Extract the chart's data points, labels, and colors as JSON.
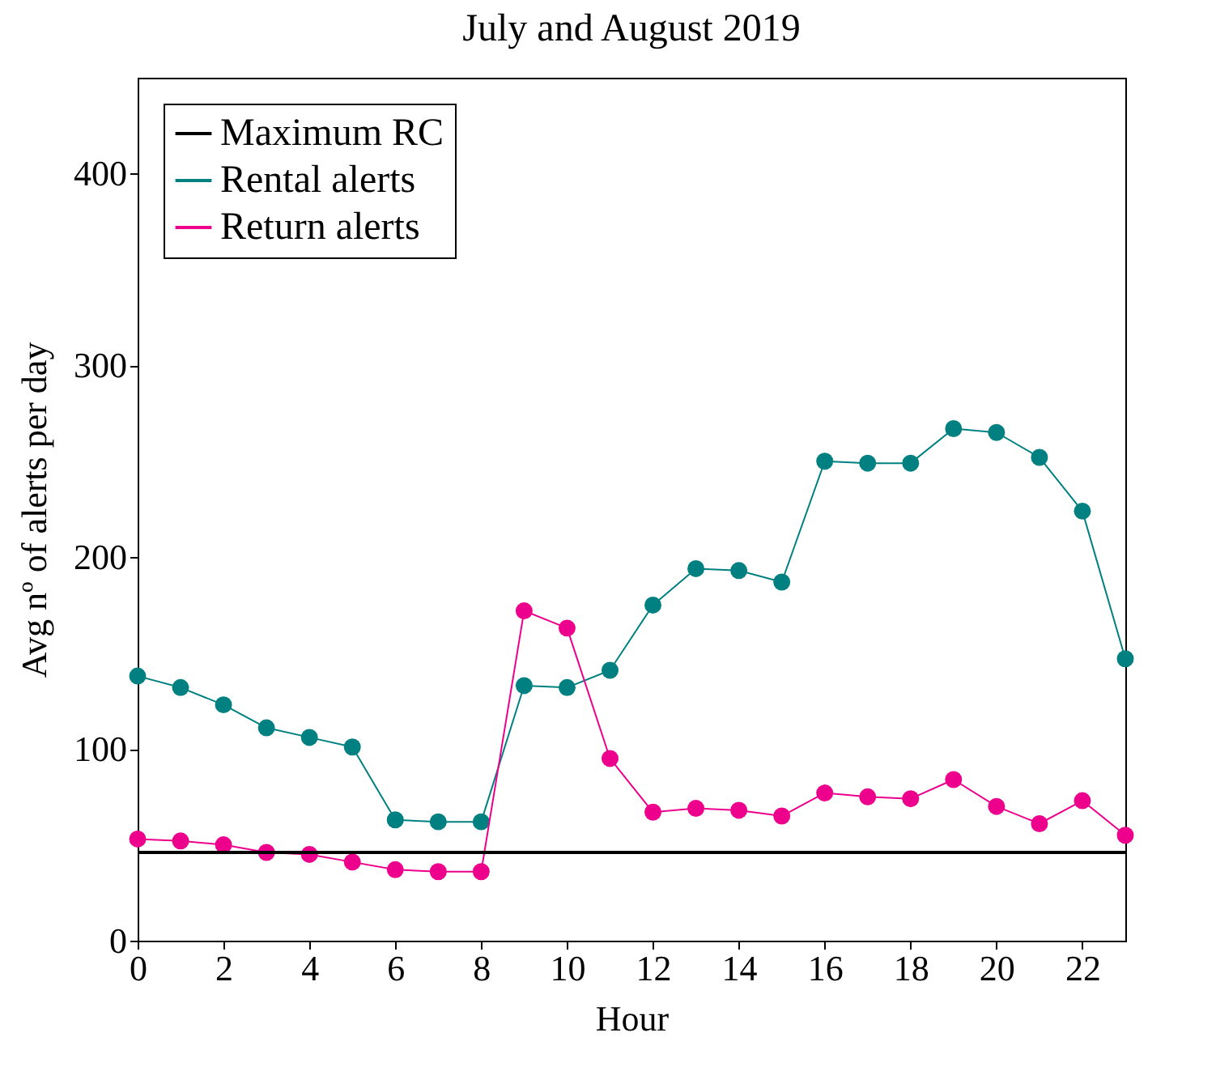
{
  "chart_data": {
    "type": "line",
    "title": "July and August 2019",
    "xlabel": "Hour",
    "ylabel": "Avg nº of alerts per day",
    "x": [
      0,
      1,
      2,
      3,
      4,
      5,
      6,
      7,
      8,
      9,
      10,
      11,
      12,
      13,
      14,
      15,
      16,
      17,
      18,
      19,
      20,
      21,
      22,
      23
    ],
    "series": [
      {
        "name": "Maximum RC",
        "color": "#000000",
        "marker": "none",
        "values": [
          46,
          46,
          46,
          46,
          46,
          46,
          46,
          46,
          46,
          46,
          46,
          46,
          46,
          46,
          46,
          46,
          46,
          46,
          46,
          46,
          46,
          46,
          46,
          46
        ]
      },
      {
        "name": "Rental alerts",
        "color": "#008080",
        "values": [
          138,
          132,
          123,
          111,
          106,
          101,
          63,
          62,
          62,
          133,
          132,
          141,
          175,
          194,
          193,
          187,
          250,
          249,
          249,
          267,
          265,
          252,
          224,
          147
        ]
      },
      {
        "name": "Return alerts",
        "color": "#ec008c",
        "values": [
          53,
          52,
          50,
          46,
          45,
          41,
          37,
          36,
          36,
          172,
          163,
          95,
          67,
          69,
          68,
          65,
          77,
          75,
          74,
          84,
          70,
          61,
          73,
          55
        ]
      }
    ],
    "xlim": [
      0,
      23
    ],
    "xticks": [
      0,
      2,
      4,
      6,
      8,
      10,
      12,
      14,
      16,
      18,
      20,
      22
    ],
    "ylim": [
      0,
      450
    ],
    "yticks": [
      0,
      100,
      200,
      300,
      400
    ],
    "grid": false,
    "legend": "top left",
    "marker": "circle",
    "line_style": "solid"
  }
}
